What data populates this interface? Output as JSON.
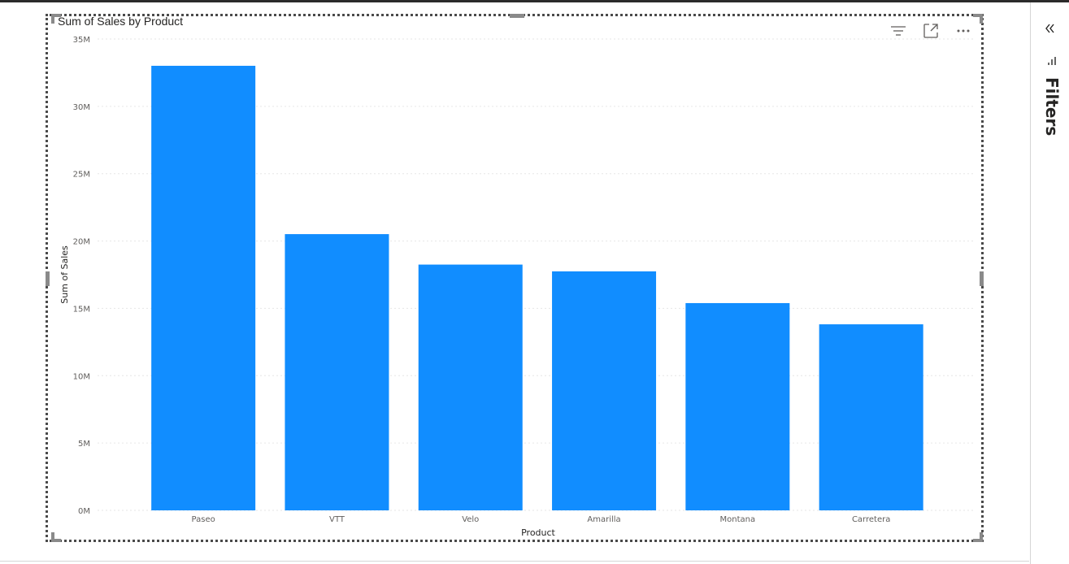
{
  "visual": {
    "title": "Sum of Sales by Product",
    "icons": [
      "filter-icon",
      "focus-mode-icon",
      "more-options-icon"
    ]
  },
  "filters_pane": {
    "label": "Filters",
    "icons": [
      "collapse-chevrons-icon",
      "filter-icon"
    ]
  },
  "colors": {
    "bar": "#118DFF",
    "grid": "#e6e6e6",
    "axis_text": "#605e5c"
  },
  "chart_data": {
    "type": "bar",
    "title": "Sum of Sales by Product",
    "xlabel": "Product",
    "ylabel": "Sum of Sales",
    "categories": [
      "Paseo",
      "VTT",
      "Velo",
      "Amarilla",
      "Montana",
      "Carretera"
    ],
    "values": [
      33011143,
      20511921,
      18250059,
      17747116,
      15390801,
      13815307
    ],
    "ylim": [
      0,
      35000000
    ],
    "yticks": [
      "0M",
      "5M",
      "10M",
      "15M",
      "20M",
      "25M",
      "30M",
      "35M"
    ],
    "grid": true,
    "legend": "none"
  }
}
